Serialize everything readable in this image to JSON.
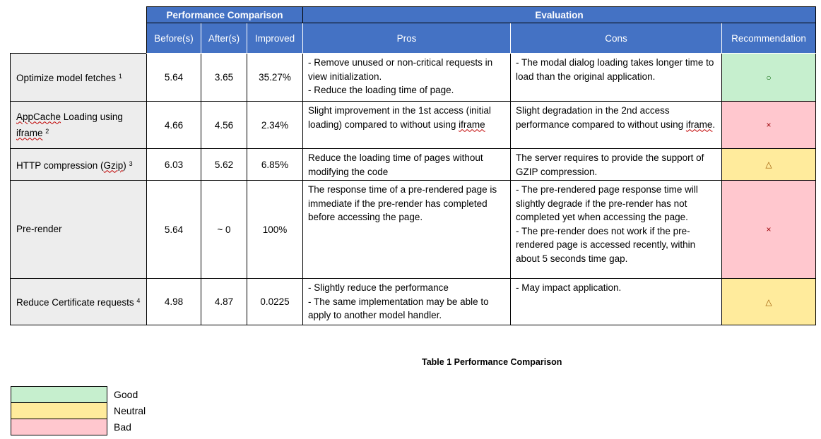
{
  "header": {
    "group1": "Performance Comparison",
    "group2": "Evaluation",
    "cols": [
      "Before(s)",
      "After(s)",
      "Improved",
      "Pros",
      "Cons",
      "Recommendation"
    ]
  },
  "rows": [
    {
      "label": "Optimize model fetches",
      "sup": "1",
      "before": "5.64",
      "after": "3.65",
      "improved": "35.27%",
      "pros": [
        "- Remove unused or non-critical requests in view initialization.",
        "- Reduce the loading time of page."
      ],
      "cons": [
        "- The modal dialog loading takes longer time to load than the original application."
      ],
      "rec_symbol": "○",
      "rec_level": "good"
    },
    {
      "label_part1": "AppCache",
      "label_part2": " Loading using ",
      "label_part3": "iframe",
      "sup": "2",
      "before": "4.66",
      "after": "4.56",
      "improved": "2.34%",
      "pros_part1": "Slight improvement in the 1st access (initial loading) compared to without using ",
      "pros_part2": "iframe",
      "cons_part1": "Slight degradation in the 2nd access performance compared to without using ",
      "cons_part2": "iframe",
      "cons_part3": ".",
      "rec_symbol": "×",
      "rec_level": "bad"
    },
    {
      "label_part1": "HTTP compression (",
      "label_part2": "Gzip",
      "label_part3": ")",
      "sup": "3",
      "before": "6.03",
      "after": "5.62",
      "improved": "6.85%",
      "pros": [
        "Reduce the loading time of pages without modifying the code"
      ],
      "cons": [
        "The server requires to provide the support of GZIP compression."
      ],
      "rec_symbol": "△",
      "rec_level": "neutral"
    },
    {
      "label": "Pre-render",
      "before": "5.64",
      "after": "~ 0",
      "improved": "100%",
      "pros": [
        "The response time of a pre-rendered page is immediate if the pre-render has completed before accessing the page."
      ],
      "cons": [
        "- The pre-rendered page response time will slightly degrade if the pre-render has not completed yet when accessing the page.",
        "- The pre-render does not work if the pre-rendered page is accessed recently, within about 5 seconds time gap."
      ],
      "rec_symbol": "×",
      "rec_level": "bad"
    },
    {
      "label": "Reduce Certificate requests",
      "sup": "4",
      "before": "4.98",
      "after": "4.87",
      "improved": "0.0225",
      "pros": [
        "- Slightly reduce the performance",
        "- The same implementation may be able to apply to another model handler."
      ],
      "cons": [
        "- May impact application."
      ],
      "rec_symbol": "△",
      "rec_level": "neutral"
    }
  ],
  "caption": "Table 1 Performance Comparison",
  "legend": [
    {
      "label": "Good",
      "color": "#C6EFCE"
    },
    {
      "label": "Neutral",
      "color": "#FFEB9C"
    },
    {
      "label": "Bad",
      "color": "#FFC7CE"
    }
  ]
}
